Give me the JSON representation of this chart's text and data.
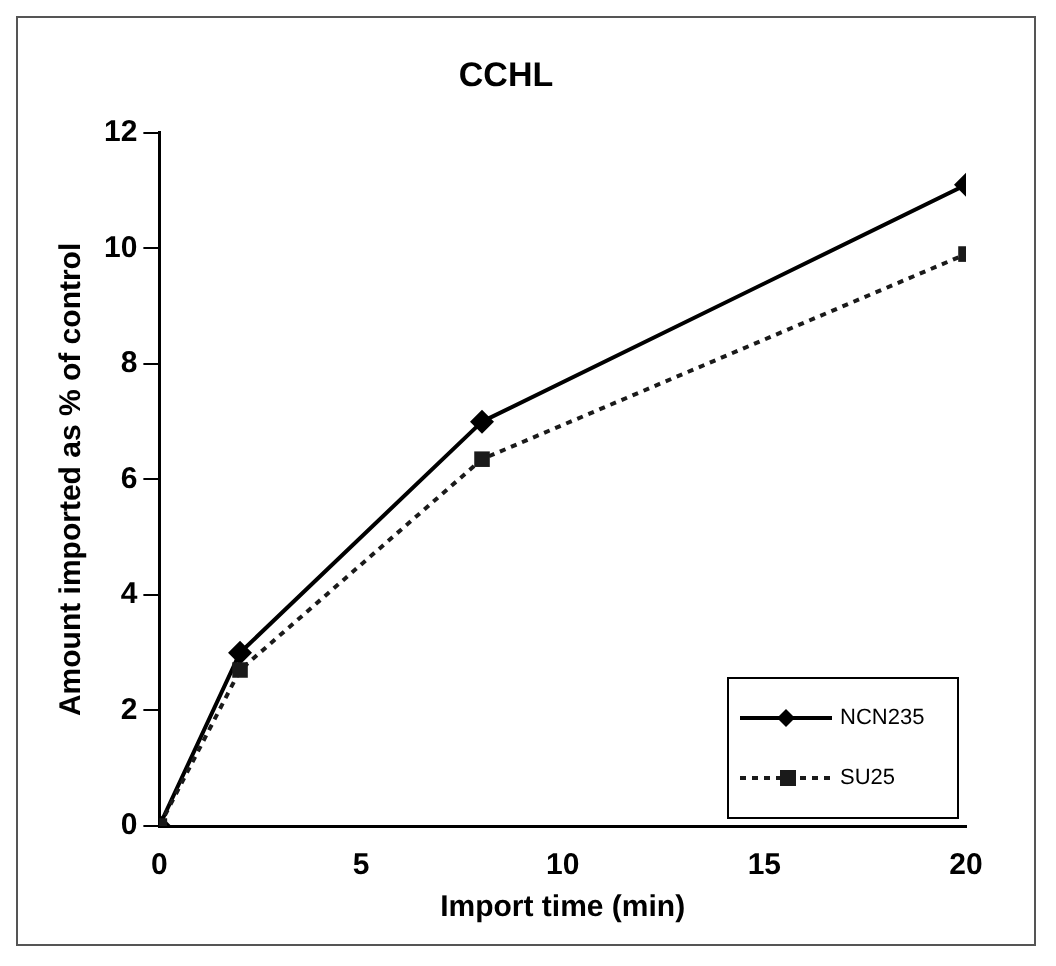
{
  "chart_data": {
    "type": "line",
    "title": "CCHL",
    "xlabel": "Import time (min)",
    "ylabel": "Amount imported as % of control",
    "x": [
      0,
      2,
      8,
      20
    ],
    "series": [
      {
        "name": "NCN235",
        "color": "#000000",
        "values": [
          0,
          3.0,
          7.0,
          11.1
        ],
        "marker": "diamond",
        "line_style": "solid"
      },
      {
        "name": "SU25",
        "color": "#1a1a1a",
        "values": [
          0,
          2.7,
          6.35,
          9.9
        ],
        "marker": "square",
        "line_style": "dotted"
      }
    ],
    "xlim": [
      0,
      20
    ],
    "xticks": [
      0,
      5,
      10,
      15,
      20
    ],
    "ylim": [
      0,
      12
    ],
    "yticks": [
      0,
      2,
      4,
      6,
      8,
      10,
      12
    ],
    "grid": false,
    "legend": "bottom right"
  }
}
